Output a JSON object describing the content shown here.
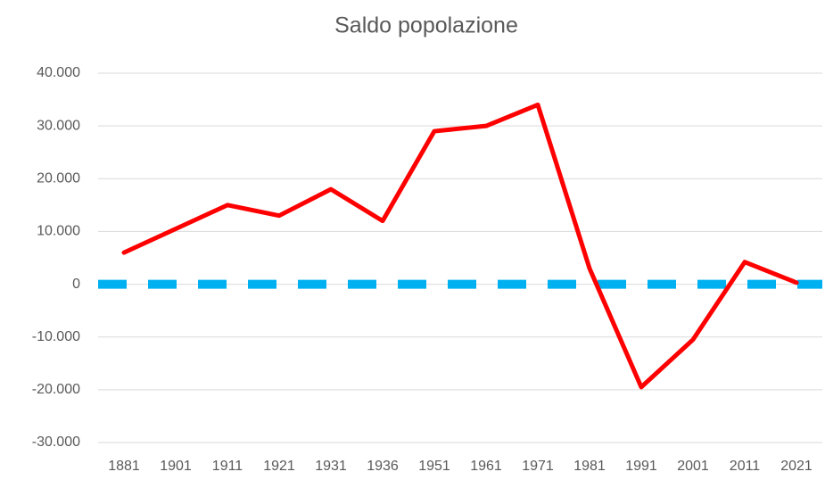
{
  "chart_data": {
    "type": "line",
    "title": "Saldo popolazione",
    "categories": [
      "1881",
      "1901",
      "1911",
      "1921",
      "1931",
      "1936",
      "1951",
      "1961",
      "1971",
      "1981",
      "1991",
      "2001",
      "2011",
      "2021"
    ],
    "series": [
      {
        "color": "#ff0000",
        "values": [
          6000,
          10500,
          15000,
          13000,
          18000,
          12000,
          29000,
          30000,
          34000,
          3000,
          -19500,
          -10500,
          4200,
          300
        ]
      }
    ],
    "zero_line": {
      "value": 0,
      "color": "#00b0f0",
      "dashed": true
    },
    "ylim": [
      -30000,
      40000
    ],
    "yticks": [
      {
        "value": -30000,
        "label": "-30.000"
      },
      {
        "value": -20000,
        "label": "-20.000"
      },
      {
        "value": -10000,
        "label": "-10.000"
      },
      0,
      {
        "value": 10000,
        "label": "10.000"
      },
      {
        "value": 20000,
        "label": "20.000"
      },
      {
        "value": 30000,
        "label": "30.000"
      },
      {
        "value": 40000,
        "label": "40.000"
      }
    ],
    "grid": true
  }
}
